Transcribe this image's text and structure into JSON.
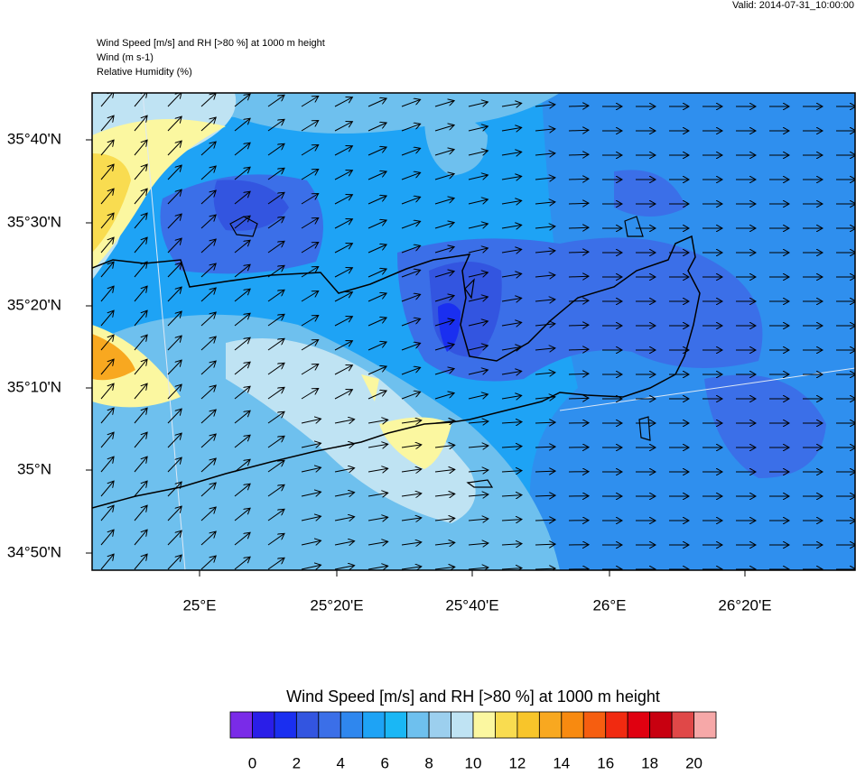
{
  "valid": "Valid: 2014-07-31_10:00:00",
  "header": {
    "lines": [
      "Wind Speed [m/s] and RH [>80 %] at 1000 m height",
      "Wind   (m s-1)",
      "Relative Humidity   (%)"
    ]
  },
  "map": {
    "lat_labels": [
      "35°40'N",
      "35°30'N",
      "35°20'N",
      "35°10'N",
      "35°N",
      "34°50'N"
    ],
    "lon_labels": [
      "25°E",
      "25°20'E",
      "25°40'E",
      "26°E",
      "26°20'E"
    ]
  },
  "colorbar": {
    "title": "Wind Speed [m/s] and RH [>80 %] at 1000 m height",
    "colors": [
      "#7a2be8",
      "#2a1ee8",
      "#1a2ff0",
      "#3355e0",
      "#3b6fe8",
      "#2f87ee",
      "#1ea3f5",
      "#1ab7f5",
      "#6ec0ee",
      "#9ccfee",
      "#bfe3f3",
      "#fbf7a0",
      "#f9dc50",
      "#f8c52a",
      "#f8a820",
      "#f88a10",
      "#f65e10",
      "#f12a10",
      "#e00010",
      "#c80010",
      "#e04848",
      "#f6a8a8"
    ],
    "labels": [
      0,
      2,
      4,
      6,
      8,
      10,
      12,
      14,
      16,
      18,
      20
    ]
  }
}
